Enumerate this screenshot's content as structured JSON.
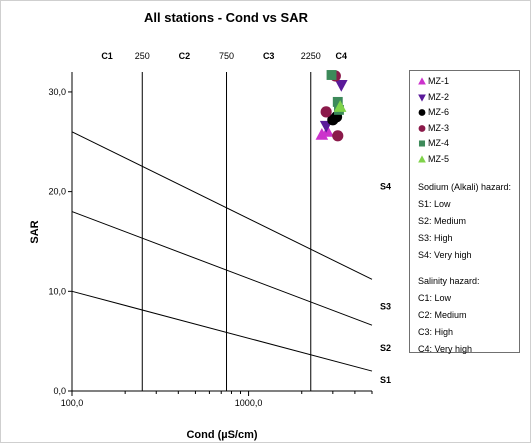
{
  "chart_data": {
    "type": "scatter",
    "title": "All stations - Cond vs SAR",
    "xlabel": "Cond (µS/cm)",
    "ylabel": "SAR",
    "x_scale": "log",
    "xlim": [
      100,
      5000
    ],
    "ylim": [
      0,
      32
    ],
    "y_ticks": [
      "0,0",
      "10,0",
      "20,0",
      "30,0"
    ],
    "y_tick_values": [
      0,
      10,
      20,
      30
    ],
    "x_ticks": [
      "100,0",
      "1000,0"
    ],
    "x_tick_values": [
      100,
      1000
    ],
    "salinity_boundaries": [
      250,
      750,
      2250
    ],
    "top_labels": [
      {
        "text": "C1",
        "x": 158
      },
      {
        "text": "250",
        "x": 250
      },
      {
        "text": "C2",
        "x": 433
      },
      {
        "text": "750",
        "x": 750
      },
      {
        "text": "C3",
        "x": 1300
      },
      {
        "text": "2250",
        "x": 2250
      },
      {
        "text": "C4",
        "x": 3350
      }
    ],
    "sodium_lines": [
      {
        "label": "S1",
        "x": [
          100,
          5000
        ],
        "y": [
          10,
          2
        ]
      },
      {
        "label": "S2",
        "x": [
          100,
          5000
        ],
        "y": [
          18,
          6.6
        ]
      },
      {
        "label": "S3",
        "x": [
          100,
          5000
        ],
        "y": [
          26,
          11.2
        ]
      }
    ],
    "right_labels": [
      {
        "text": "S4",
        "y": 20.5
      },
      {
        "text": "S3",
        "y": 8.5
      },
      {
        "text": "S2",
        "y": 4.3
      },
      {
        "text": "S1",
        "y": 1.1
      }
    ],
    "series": [
      {
        "name": "MZ-1",
        "marker": "triangle-up",
        "color": "#cc33cc",
        "points": [
          [
            2600,
            25.7
          ],
          [
            2800,
            26.0
          ]
        ]
      },
      {
        "name": "MZ-2",
        "marker": "triangle-down",
        "color": "#5a1a9a",
        "points": [
          [
            2750,
            26.6
          ],
          [
            3350,
            30.7
          ]
        ]
      },
      {
        "name": "MZ-6",
        "marker": "circle",
        "color": "#000000",
        "points": [
          [
            3000,
            27.2
          ],
          [
            3150,
            27.5
          ]
        ]
      },
      {
        "name": "MZ-3",
        "marker": "circle",
        "color": "#8b1a4a",
        "points": [
          [
            2750,
            28.0
          ],
          [
            3200,
            25.6
          ],
          [
            3100,
            31.6
          ]
        ]
      },
      {
        "name": "MZ-4",
        "marker": "square",
        "color": "#3d8a5a",
        "points": [
          [
            2950,
            31.7
          ],
          [
            3200,
            29.0
          ],
          [
            3250,
            28.2
          ]
        ]
      },
      {
        "name": "MZ-5",
        "marker": "triangle-up",
        "color": "#7fd34a",
        "points": [
          [
            3300,
            28.5
          ]
        ]
      }
    ]
  },
  "legend": {
    "sodium_title": "Sodium (Alkali) hazard:",
    "sodium_items": [
      "S1: Low",
      "S2: Medium",
      "S3: High",
      "S4: Very high"
    ],
    "salinity_title": "Salinity hazard:",
    "salinity_items": [
      "C1: Low",
      "C2: Medium",
      "C3: High",
      "C4: Very high"
    ]
  }
}
